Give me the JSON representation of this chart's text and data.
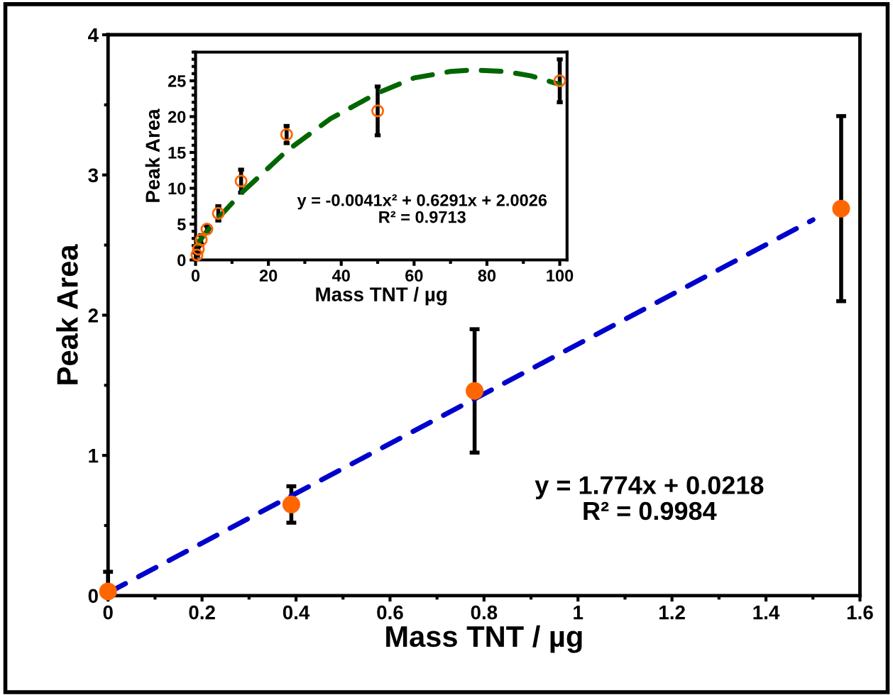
{
  "chart_data": [
    {
      "type": "scatter",
      "xlabel": "Mass TNT / µg",
      "ylabel": "Peak Area",
      "xlim": [
        0,
        1.6
      ],
      "ylim": [
        0,
        4
      ],
      "xticks": [
        0,
        0.2,
        0.4,
        0.6,
        0.8,
        1,
        1.2,
        1.4,
        1.6
      ],
      "yticks": [
        0,
        1,
        2,
        3,
        4
      ],
      "grid": false,
      "legend": false,
      "series": [
        {
          "type": "line",
          "x": [
            0,
            1.5
          ],
          "values": [
            0.02,
            2.68
          ],
          "color": "#0000cc",
          "line_style": "dashed",
          "marker": "none"
        },
        {
          "type": "scatter",
          "x": [
            0,
            0.39,
            0.78,
            1.56
          ],
          "values": [
            0.03,
            0.65,
            1.46,
            2.76
          ],
          "errors": [
            [
              0.03,
              0.17
            ],
            [
              0.52,
              0.78
            ],
            [
              1.02,
              1.9
            ],
            [
              2.1,
              3.42
            ]
          ],
          "color": "#ff6600",
          "marker": "circle"
        }
      ],
      "annotations": [
        "y = 1.774x + 0.0218\nR² = 0.9984"
      ]
    },
    {
      "type": "scatter",
      "xlabel": "Mass TNT / µg",
      "ylabel": "Peak Area",
      "xlim": [
        0,
        102
      ],
      "ylim": [
        0,
        29
      ],
      "xticks": [
        0,
        20,
        40,
        60,
        80,
        100
      ],
      "yticks": [
        0,
        5,
        10,
        15,
        20,
        25
      ],
      "grid": false,
      "legend": false,
      "series": [
        {
          "type": "line",
          "x": [
            0.39,
            3,
            6,
            12.5,
            25,
            37,
            50,
            60,
            70,
            76,
            85,
            92,
            100
          ],
          "values": [
            2.2,
            3.9,
            5.7,
            9.3,
            15.2,
            19.7,
            23.3,
            25.4,
            26.3,
            26.5,
            26.3,
            25.7,
            24.5
          ],
          "color": "#006600",
          "line_style": "dashed",
          "marker": "none"
        },
        {
          "type": "scatter",
          "x": [
            0.39,
            0.78,
            1.56,
            3.125,
            6.25,
            12.5,
            25,
            50,
            100
          ],
          "values": [
            0.7,
            1.5,
            2.8,
            4.3,
            6.5,
            11.0,
            17.5,
            20.8,
            25.0
          ],
          "errors": [
            0.13,
            0.44,
            0.66,
            0.5,
            1.0,
            1.6,
            1.2,
            3.4,
            3.0
          ],
          "color": "#ff6600",
          "marker": "circle"
        }
      ],
      "annotations": [
        "y = -0.0041x² + 0.6291x + 2.0026\nR² = 0.9713"
      ]
    }
  ]
}
